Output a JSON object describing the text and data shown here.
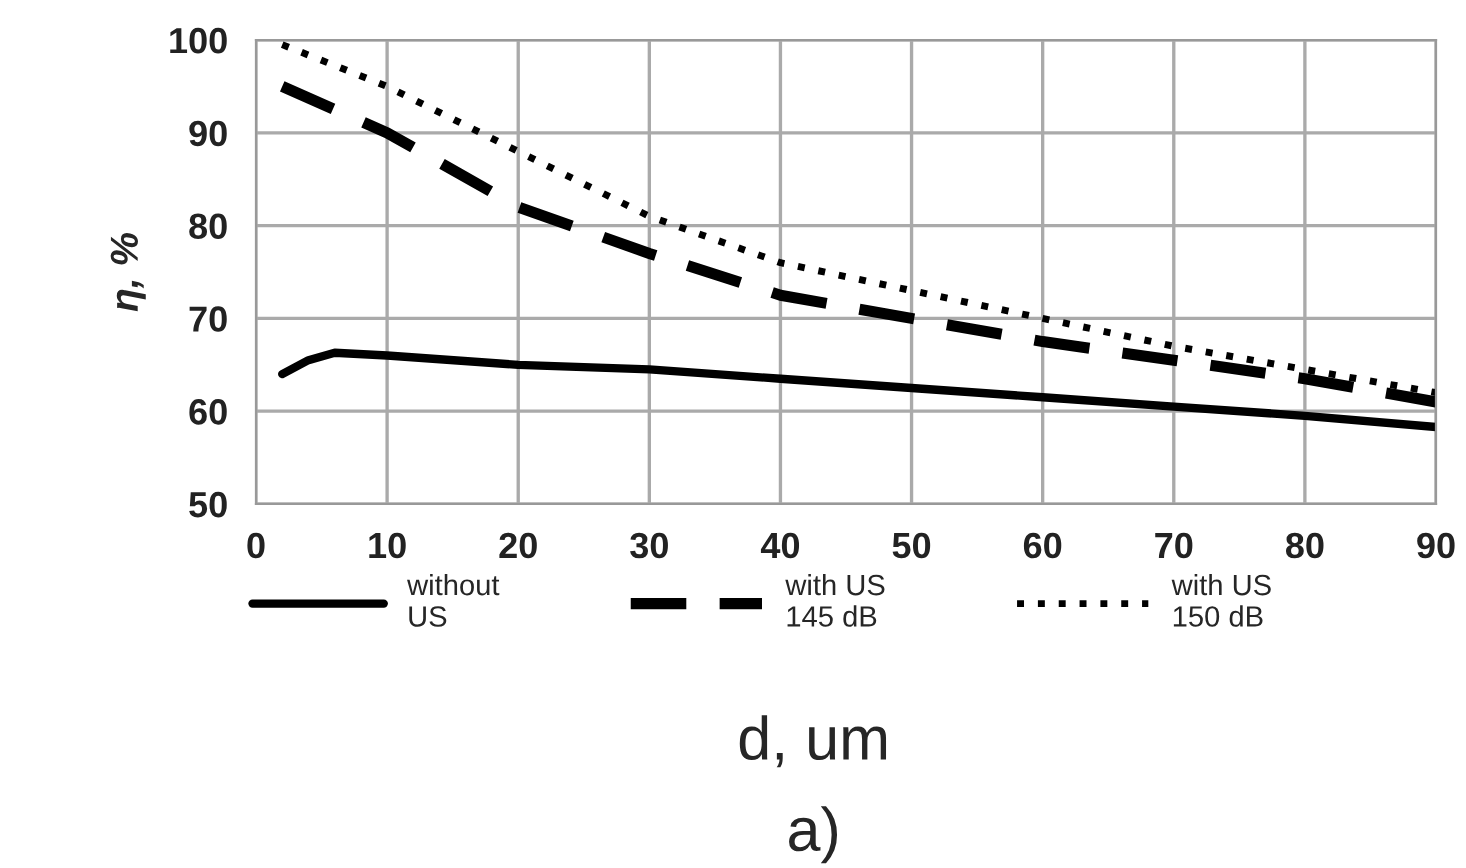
{
  "chart_data": {
    "type": "line",
    "xlabel": "d, um",
    "ylabel": "η, %",
    "annotations": [
      "a)"
    ],
    "xlim": [
      0,
      90
    ],
    "xticks": [
      0,
      10,
      20,
      30,
      40,
      50,
      60,
      70,
      80,
      90
    ],
    "ylim": [
      50,
      100
    ],
    "yticks": [
      50,
      60,
      70,
      80,
      90,
      100
    ],
    "grid": true,
    "legend": "bottom",
    "marker": "none",
    "series": [
      {
        "name": "without\nUS",
        "color": "#000000",
        "line_style": "solid",
        "x": [
          2,
          4,
          6,
          10,
          20,
          30,
          40,
          50,
          60,
          70,
          80,
          90
        ],
        "values": [
          64,
          65.5,
          66.3,
          66,
          65,
          64.5,
          63.5,
          62.5,
          61.5,
          60.5,
          59.5,
          58.3
        ]
      },
      {
        "name": "with US\n145 dB",
        "color": "#000000",
        "line_style": "dashed",
        "x": [
          2,
          10,
          20,
          30,
          40,
          50,
          60,
          70,
          80,
          90
        ],
        "values": [
          95,
          90,
          82,
          77,
          72.5,
          70,
          67.5,
          65.5,
          63.5,
          61
        ]
      },
      {
        "name": "with US\n150 dB",
        "color": "#000000",
        "line_style": "dotted",
        "x": [
          2,
          10,
          20,
          30,
          40,
          50,
          60,
          70,
          80,
          90
        ],
        "values": [
          99.5,
          95,
          88,
          81,
          76,
          73,
          70,
          67,
          64.5,
          62
        ]
      }
    ]
  }
}
